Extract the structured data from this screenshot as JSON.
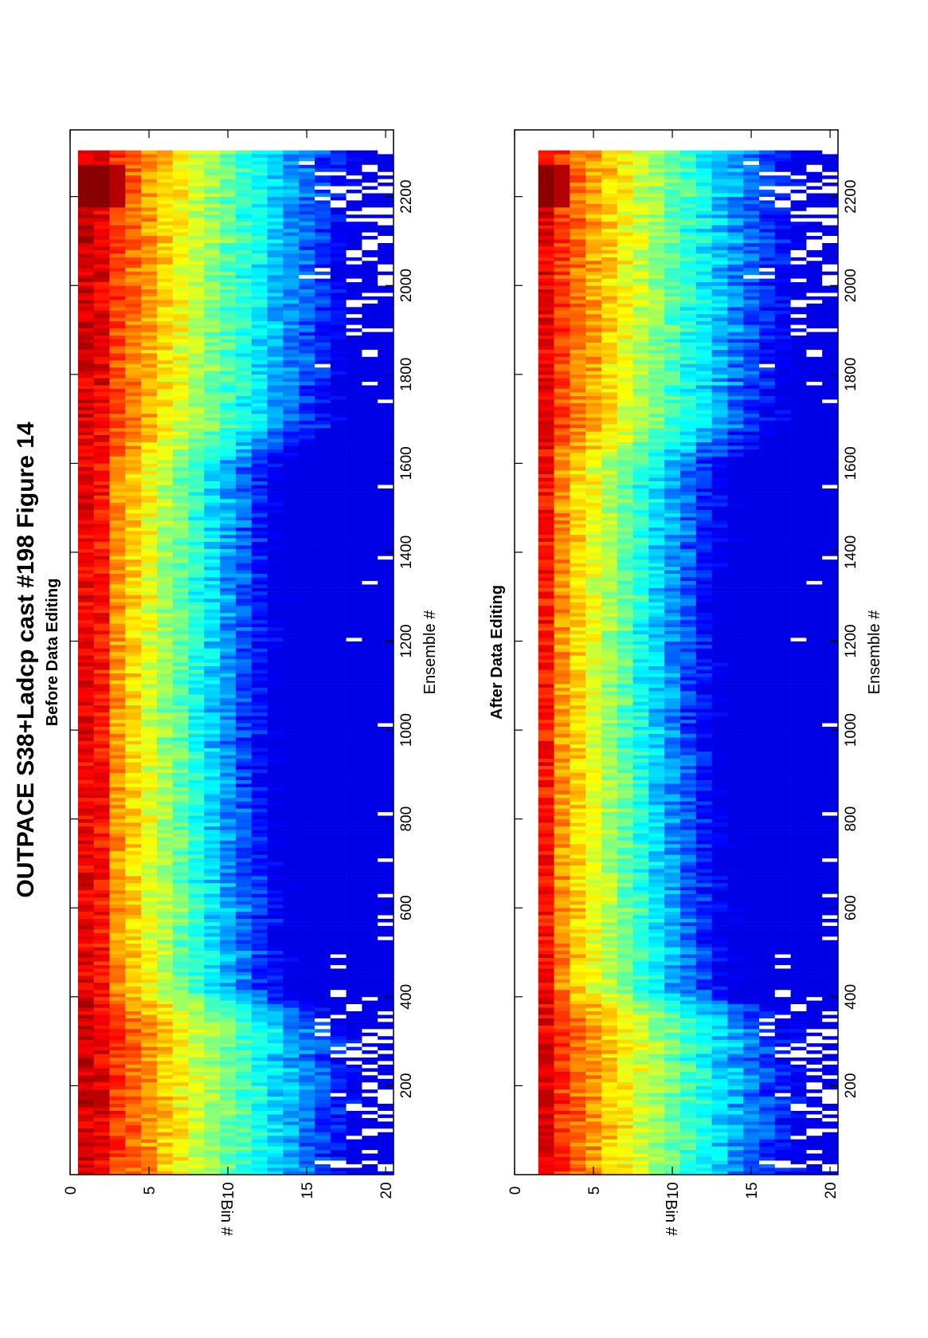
{
  "figure": {
    "title": "OUTPACE S38+Ladcp cast #198  Figure 14"
  },
  "chart_data": [
    {
      "type": "heatmap",
      "title": "Before Data Editing",
      "xlabel": "Ensemble #",
      "ylabel": "Bin #",
      "xlim": [
        0,
        2350
      ],
      "ylim": [
        0,
        20.5
      ],
      "y_reversed": true,
      "x_ticks": [
        200,
        400,
        600,
        800,
        1000,
        1200,
        1400,
        1600,
        1800,
        2000,
        2200
      ],
      "y_ticks": [
        0,
        5,
        10,
        15,
        20
      ],
      "colormap": "jet",
      "grid": false,
      "rows_shown": [
        1,
        20
      ],
      "notable_features": [
        "high values (orange/red) in bins 1-2 across all ensembles",
        "dark red maximum near ensembles 2170-2270, bins 1-3",
        "red patch near ensemble 170, bins 1-2",
        "white gaps (missing data) in bins 15-20, mainly ensembles 0-420 and 1950-2350"
      ]
    },
    {
      "type": "heatmap",
      "title": "After Data Editing",
      "xlabel": "Ensemble #",
      "ylabel": "Bin #",
      "xlim": [
        0,
        2350
      ],
      "ylim": [
        0,
        20.5
      ],
      "y_reversed": true,
      "x_ticks": [
        200,
        400,
        600,
        800,
        1000,
        1200,
        1400,
        1600,
        1800,
        2000,
        2200
      ],
      "y_ticks": [
        0,
        5,
        10,
        15,
        20
      ],
      "colormap": "jet",
      "grid": false,
      "rows_shown": [
        2,
        20
      ],
      "notable_features": [
        "bin 1 removed (white band)",
        "orange values in bins 2-3",
        "dark red maximum near ensembles 2170-2250, bins 2-3",
        "white gaps (missing data) in bins 15-20"
      ]
    }
  ]
}
